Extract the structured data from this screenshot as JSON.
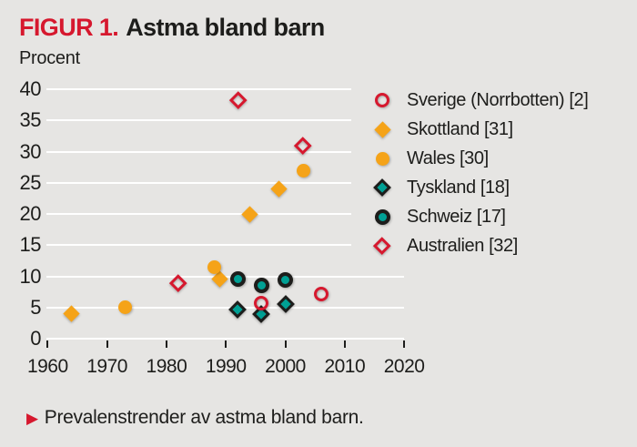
{
  "header": {
    "figure_label": "FIGUR 1.",
    "title": "Astma bland barn"
  },
  "axis": {
    "y_unit_label": "Procent"
  },
  "caption": {
    "bullet": "▶",
    "text": "Prevalenstrender av astma bland barn."
  },
  "colors": {
    "background": "#e6e5e3",
    "red": "#d6182e",
    "orange": "#f5a318",
    "teal": "#00a094",
    "ink": "#1d1d1b",
    "grid": "#ffffff"
  },
  "chart_data": {
    "type": "scatter",
    "title": "Astma bland barn",
    "xlabel": "",
    "ylabel": "Procent",
    "xlim": [
      1958,
      2022
    ],
    "ylim": [
      0,
      40
    ],
    "xticks": [
      1960,
      1970,
      1980,
      1990,
      2000,
      2010,
      2020
    ],
    "yticks": [
      0,
      5,
      10,
      15,
      20,
      25,
      30,
      35,
      40
    ],
    "grid": "horizontal white lines",
    "legend_position": "top-right",
    "series": [
      {
        "name": "Skottland [31]",
        "marker": "diamond",
        "color": "#f5a318",
        "points": [
          [
            1964,
            4
          ],
          [
            1989,
            9.5
          ],
          [
            1994,
            20
          ],
          [
            1999,
            24
          ]
        ]
      },
      {
        "name": "Wales [30]",
        "marker": "circle",
        "color": "#f5a318",
        "points": [
          [
            1973,
            5
          ],
          [
            1988,
            11.5
          ],
          [
            2003,
            27
          ]
        ]
      },
      {
        "name": "Tyskland [18]",
        "marker": "outlined-diamond",
        "color": "#00a094",
        "points": [
          [
            1992,
            4.7
          ],
          [
            1996,
            4
          ],
          [
            2000,
            5.5
          ]
        ]
      },
      {
        "name": "Schweiz [17]",
        "marker": "outlined-circle",
        "color": "#00a094",
        "points": [
          [
            1992,
            9.5
          ],
          [
            1996,
            8.5
          ],
          [
            2000,
            9.4
          ]
        ]
      },
      {
        "name": "Australien [32]",
        "marker": "open-diamond",
        "color": "#d6182e",
        "points": [
          [
            1982,
            9
          ],
          [
            1992,
            38.3
          ],
          [
            2003,
            31
          ]
        ]
      },
      {
        "name": "Sverige (Norrbotten) [2]",
        "marker": "open-circle",
        "color": "#d6182e",
        "points": [
          [
            1996,
            5.7
          ],
          [
            2006,
            7.2
          ]
        ]
      }
    ],
    "legend_order": [
      "Sverige (Norrbotten) [2]",
      "Skottland [31]",
      "Wales [30]",
      "Tyskland [18]",
      "Schweiz [17]",
      "Australien [32]"
    ]
  }
}
